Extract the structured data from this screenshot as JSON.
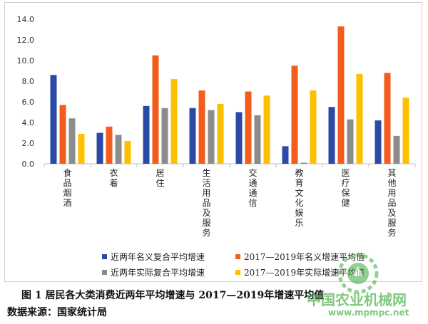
{
  "chart_data": {
    "type": "bar",
    "categories": [
      "食品烟酒",
      "衣着",
      "居住",
      "生活用品及服务",
      "交通通信",
      "教育文化娱乐",
      "医疗保健",
      "其他用品及服务"
    ],
    "series": [
      {
        "name": "近两年名义复合平均增速",
        "color": "#2b4aa6",
        "values": [
          8.6,
          3.0,
          5.6,
          5.4,
          5.0,
          1.7,
          5.5,
          4.2
        ]
      },
      {
        "name": "2017—2019年名义增速平均值",
        "color": "#f25c1c",
        "values": [
          5.7,
          3.6,
          10.5,
          7.1,
          7.0,
          9.5,
          13.3,
          8.8
        ]
      },
      {
        "name": "近两年实际复合平均增速",
        "color": "#8c8c8c",
        "values": [
          4.4,
          2.8,
          5.4,
          5.2,
          4.7,
          0.1,
          4.3,
          2.7
        ]
      },
      {
        "name": "2017—2019年实际增速平均值",
        "color": "#fcc000",
        "values": [
          2.9,
          2.2,
          8.2,
          5.8,
          6.6,
          7.1,
          8.7,
          6.4
        ]
      }
    ],
    "ylim": [
      0,
      14
    ],
    "yticks": [
      "0.0",
      "2.0",
      "4.0",
      "6.0",
      "8.0",
      "10.0",
      "12.0",
      "14.0"
    ],
    "grid": false,
    "legend_position": "bottom",
    "caption": "图 1   居民各大类消费近两年平均增速与 2017—2019年增速平均值",
    "source": "数据来源：国家统计局"
  },
  "watermark": {
    "text": "中国农业机械网",
    "url": "www.mpmpc.net"
  }
}
